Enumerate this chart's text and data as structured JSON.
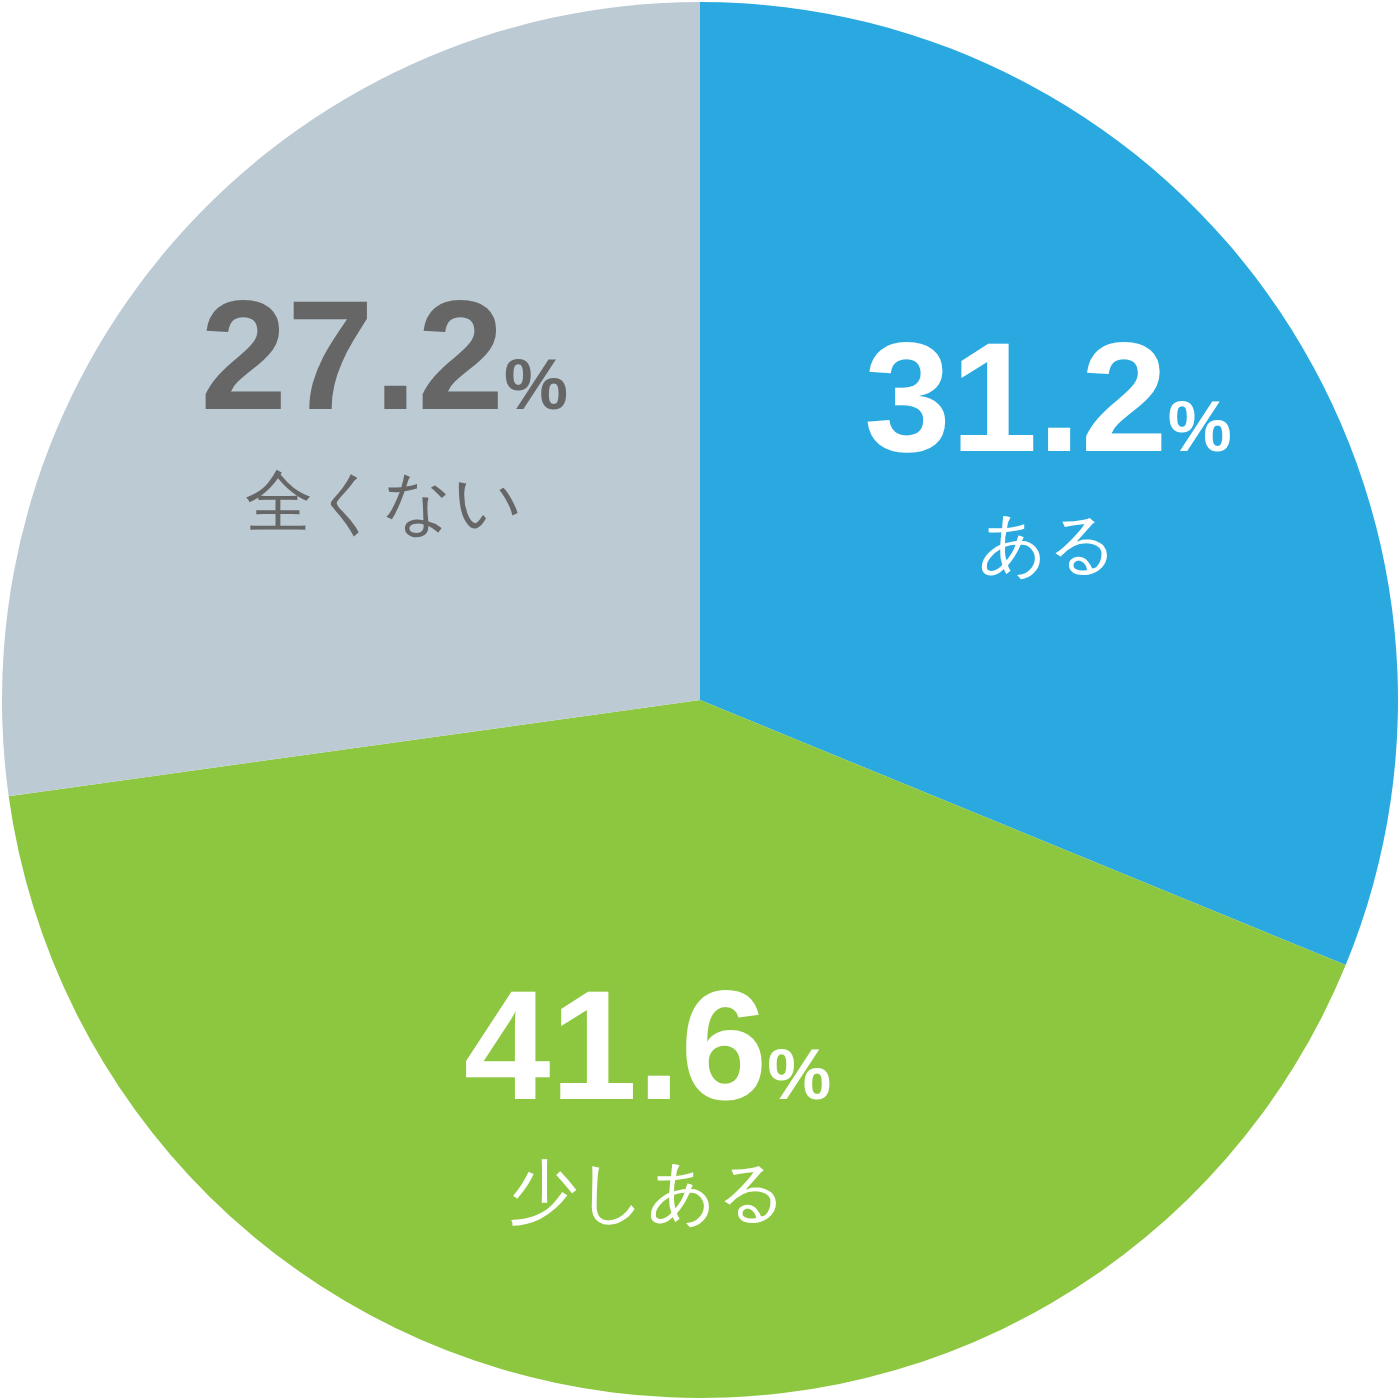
{
  "chart_data": {
    "type": "pie",
    "categories": [
      "ある",
      "少しある",
      "全くない"
    ],
    "values": [
      31.2,
      41.6,
      27.2
    ],
    "colors": [
      "#29a9e0",
      "#8dc63f",
      "#bccad4"
    ],
    "value_labels": [
      "31.2%",
      "41.6%",
      "27.2%"
    ]
  }
}
